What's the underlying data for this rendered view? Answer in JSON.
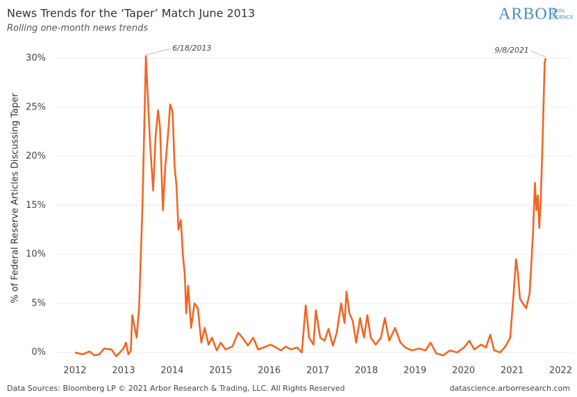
{
  "chart_data": {
    "type": "line",
    "title": "News Trends for the ‘Taper’ Match June 2013",
    "subtitle": "Rolling one-month news trends",
    "logo": "ARBOR",
    "logo_sub": [
      "DATA",
      "SCIENCE"
    ],
    "y_label": "% of Federal Reserve Articles Discussing Taper",
    "source": "Data Sources: Bloomberg LP © 2021 Arbor Research & Trading, LLC. All Rights Reserved",
    "website": "datascience.arborresearch.com",
    "xlim": [
      2011.6,
      2022.25
    ],
    "xticks": [
      2012,
      2013,
      2014,
      2015,
      2016,
      2017,
      2018,
      2019,
      2020,
      2021,
      2022
    ],
    "ylim": [
      -0.8,
      31.7
    ],
    "yticks": [
      {
        "value": 0,
        "label": "0%"
      },
      {
        "value": 5,
        "label": "5%"
      },
      {
        "value": 10,
        "label": "10%"
      },
      {
        "value": 15,
        "label": "15%"
      },
      {
        "value": 20,
        "label": "20%"
      },
      {
        "value": 25,
        "label": "25%"
      },
      {
        "value": 30,
        "label": "30%"
      }
    ],
    "grid": true,
    "annotations": [
      {
        "label": "6/18/2013",
        "x": 2013.46,
        "y": 30.2
      },
      {
        "label": "9/8/2021",
        "x": 2021.69,
        "y": 30.0
      }
    ],
    "series": [
      {
        "name": "Taper",
        "color": "#f26522",
        "x": [
          2012.0,
          2012.15,
          2012.3,
          2012.4,
          2012.5,
          2012.6,
          2012.75,
          2012.85,
          2013.0,
          2013.05,
          2013.1,
          2013.15,
          2013.18,
          2013.27,
          2013.32,
          2013.39,
          2013.46,
          2013.49,
          2013.55,
          2013.61,
          2013.66,
          2013.71,
          2013.75,
          2013.81,
          2013.86,
          2013.92,
          2013.96,
          2014.01,
          2014.05,
          2014.09,
          2014.13,
          2014.18,
          2014.22,
          2014.26,
          2014.29,
          2014.33,
          2014.39,
          2014.46,
          2014.53,
          2014.6,
          2014.67,
          2014.75,
          2014.82,
          2014.92,
          2015.0,
          2015.1,
          2015.24,
          2015.36,
          2015.45,
          2015.56,
          2015.67,
          2015.77,
          2015.88,
          2016.03,
          2016.14,
          2016.24,
          2016.34,
          2016.45,
          2016.57,
          2016.67,
          2016.75,
          2016.82,
          2016.91,
          2016.96,
          2017.05,
          2017.14,
          2017.22,
          2017.31,
          2017.39,
          2017.48,
          2017.55,
          2017.59,
          2017.65,
          2017.72,
          2017.79,
          2017.87,
          2017.95,
          2018.02,
          2018.09,
          2018.19,
          2018.3,
          2018.38,
          2018.47,
          2018.59,
          2018.7,
          2018.8,
          2018.94,
          2019.08,
          2019.22,
          2019.32,
          2019.44,
          2019.58,
          2019.72,
          2019.87,
          2020.01,
          2020.12,
          2020.22,
          2020.36,
          2020.46,
          2020.55,
          2020.63,
          2020.75,
          2020.86,
          2020.96,
          2021.03,
          2021.08,
          2021.12,
          2021.16,
          2021.22,
          2021.29,
          2021.36,
          2021.43,
          2021.47,
          2021.5,
          2021.53,
          2021.56,
          2021.59,
          2021.63,
          2021.67,
          2021.69
        ],
        "values": [
          0.0,
          -0.2,
          0.1,
          -0.3,
          -0.2,
          0.4,
          0.3,
          -0.4,
          0.4,
          1.0,
          -0.2,
          0.2,
          3.8,
          1.5,
          4.5,
          15,
          30.2,
          27,
          21,
          16.5,
          22,
          24.7,
          23,
          14.5,
          19,
          22.5,
          25.3,
          24.5,
          19,
          17,
          12.5,
          13.5,
          10,
          8,
          4,
          6.8,
          2.5,
          5.0,
          4.5,
          1,
          2.5,
          0.8,
          1.5,
          0.2,
          1.0,
          0.3,
          0.6,
          2.0,
          1.5,
          0.7,
          1.5,
          0.3,
          0.5,
          0.8,
          0.5,
          0.2,
          0.6,
          0.3,
          0.5,
          0.0,
          4.8,
          1.5,
          0.8,
          4.3,
          1.5,
          1.2,
          2.4,
          0.7,
          2.0,
          5.0,
          3.0,
          6.2,
          4.0,
          3.2,
          1.0,
          3.5,
          1.5,
          3.8,
          1.5,
          0.8,
          1.5,
          3.5,
          1.2,
          2.5,
          1.0,
          0.5,
          0.2,
          0.4,
          0.2,
          1.0,
          -0.1,
          -0.3,
          0.2,
          0.0,
          0.5,
          1.2,
          0.3,
          0.8,
          0.5,
          1.8,
          0.2,
          0.0,
          0.6,
          1.5,
          6.0,
          9.5,
          8,
          5.5,
          5.0,
          4.5,
          6,
          12,
          17.3,
          14.5,
          16,
          12.7,
          15.5,
          22,
          29.5,
          30.0
        ]
      }
    ]
  }
}
